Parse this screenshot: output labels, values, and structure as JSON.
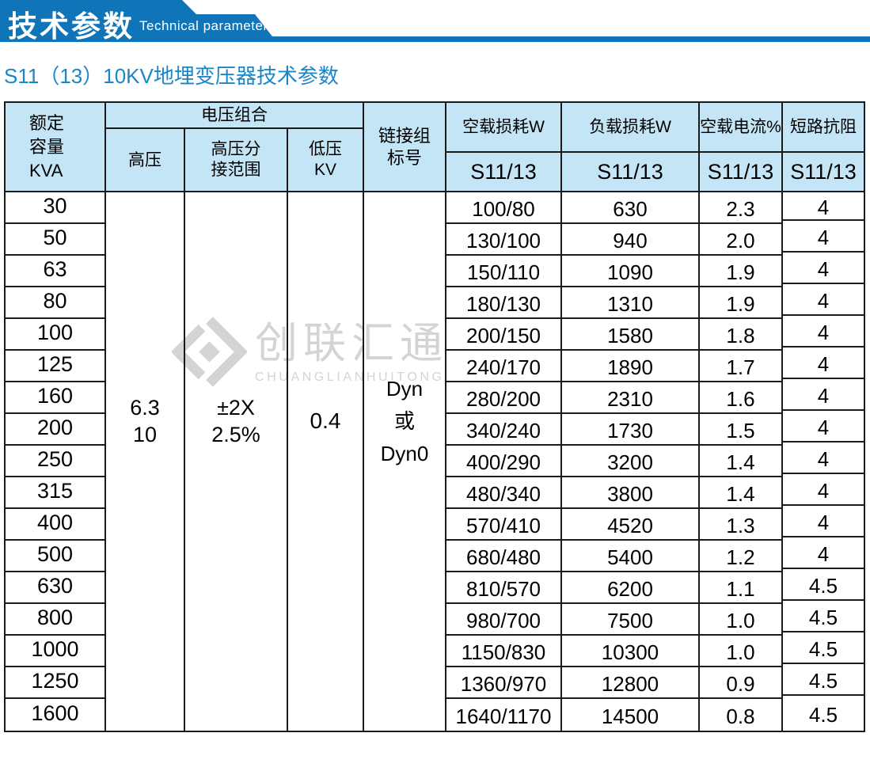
{
  "colors": {
    "banner_bg": "#0f75b8",
    "header_bg": "#c3e5f6",
    "title_color": "#1a86c8",
    "border": "#1a1a1a",
    "watermark": "#d2d2d2"
  },
  "banner": {
    "title_cn": "技术参数",
    "title_en": "Technical parameter"
  },
  "page_title": "S11（13）10KV地埋变压器技术参数",
  "watermark": {
    "name_cn": "创联汇通",
    "name_en": "CHUANGLIANHUITONG",
    "logo": "diamond-logo"
  },
  "table": {
    "headers": {
      "rated_lines": [
        "额定",
        "容量",
        "KVA"
      ],
      "voltage_group": "电压组合",
      "hv": "高压",
      "hv_tap_lines": [
        "高压分",
        "接范围"
      ],
      "lv_lines": [
        "低压",
        "KV"
      ],
      "connection_lines": [
        "链接组",
        "标号"
      ],
      "no_load_loss": "空载损耗W",
      "load_loss": "负载损耗W",
      "no_load_current": "空载电流%",
      "sc_impedance": "短路抗阻",
      "model_no_load_loss": "S11/13",
      "model_load_loss": "S11/13",
      "model_no_load_current": "S11/13",
      "model_sc_impedance": "S11/13"
    },
    "merged": {
      "hv_lines": [
        "6.3",
        "10"
      ],
      "hv_tap_lines": [
        "±2X",
        "2.5%"
      ],
      "lv": "0.4",
      "connection_lines": [
        "Dyn",
        "或",
        "Dyn0"
      ]
    },
    "rows": [
      {
        "capacity": "30",
        "no_load_loss": "100/80",
        "load_loss": "630",
        "no_load_current": "2.3",
        "sc_impedance": "4"
      },
      {
        "capacity": "50",
        "no_load_loss": "130/100",
        "load_loss": "940",
        "no_load_current": "2.0",
        "sc_impedance": "4"
      },
      {
        "capacity": "63",
        "no_load_loss": "150/110",
        "load_loss": "1090",
        "no_load_current": "1.9",
        "sc_impedance": "4"
      },
      {
        "capacity": "80",
        "no_load_loss": "180/130",
        "load_loss": "1310",
        "no_load_current": "1.9",
        "sc_impedance": "4"
      },
      {
        "capacity": "100",
        "no_load_loss": "200/150",
        "load_loss": "1580",
        "no_load_current": "1.8",
        "sc_impedance": "4"
      },
      {
        "capacity": "125",
        "no_load_loss": "240/170",
        "load_loss": "1890",
        "no_load_current": "1.7",
        "sc_impedance": "4"
      },
      {
        "capacity": "160",
        "no_load_loss": "280/200",
        "load_loss": "2310",
        "no_load_current": "1.6",
        "sc_impedance": "4"
      },
      {
        "capacity": "200",
        "no_load_loss": "340/240",
        "load_loss": "1730",
        "no_load_current": "1.5",
        "sc_impedance": "4"
      },
      {
        "capacity": "250",
        "no_load_loss": "400/290",
        "load_loss": "3200",
        "no_load_current": "1.4",
        "sc_impedance": "4"
      },
      {
        "capacity": "315",
        "no_load_loss": "480/340",
        "load_loss": "3800",
        "no_load_current": "1.4",
        "sc_impedance": "4"
      },
      {
        "capacity": "400",
        "no_load_loss": "570/410",
        "load_loss": "4520",
        "no_load_current": "1.3",
        "sc_impedance": "4"
      },
      {
        "capacity": "500",
        "no_load_loss": "680/480",
        "load_loss": "5400",
        "no_load_current": "1.2",
        "sc_impedance": "4"
      },
      {
        "capacity": "630",
        "no_load_loss": "810/570",
        "load_loss": "6200",
        "no_load_current": "1.1",
        "sc_impedance": "4.5"
      },
      {
        "capacity": "800",
        "no_load_loss": "980/700",
        "load_loss": "7500",
        "no_load_current": "1.0",
        "sc_impedance": "4.5"
      },
      {
        "capacity": "1000",
        "no_load_loss": "1150/830",
        "load_loss": "10300",
        "no_load_current": "1.0",
        "sc_impedance": "4.5"
      },
      {
        "capacity": "1250",
        "no_load_loss": "1360/970",
        "load_loss": "12800",
        "no_load_current": "0.9",
        "sc_impedance": "4.5"
      },
      {
        "capacity": "1600",
        "no_load_loss": "1640/1170",
        "load_loss": "14500",
        "no_load_current": "0.8",
        "sc_impedance": "4.5"
      }
    ]
  }
}
